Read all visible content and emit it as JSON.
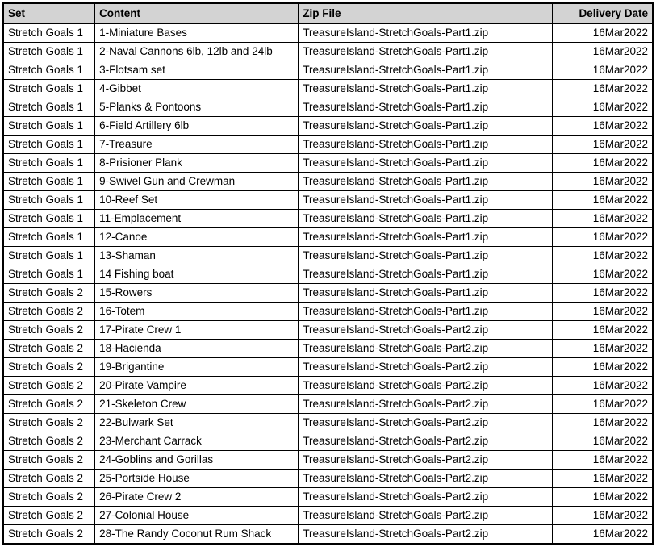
{
  "colors": {
    "header_bg": "#d3d3d3",
    "border": "#000000",
    "row_bg": "#ffffff",
    "text": "#000000"
  },
  "table": {
    "columns": [
      {
        "key": "set",
        "label": "Set"
      },
      {
        "key": "content",
        "label": "Content"
      },
      {
        "key": "zip",
        "label": "Zip File"
      },
      {
        "key": "date",
        "label": "Delivery Date"
      }
    ],
    "rows": [
      {
        "set": "Stretch Goals 1",
        "content": "1-Miniature Bases",
        "zip": "TreasureIsland-StretchGoals-Part1.zip",
        "date": "16Mar2022"
      },
      {
        "set": "Stretch Goals 1",
        "content": "2-Naval Cannons 6lb, 12lb and 24lb",
        "zip": "TreasureIsland-StretchGoals-Part1.zip",
        "date": "16Mar2022"
      },
      {
        "set": "Stretch Goals 1",
        "content": "3-Flotsam set",
        "zip": "TreasureIsland-StretchGoals-Part1.zip",
        "date": "16Mar2022"
      },
      {
        "set": "Stretch Goals 1",
        "content": "4-Gibbet",
        "zip": "TreasureIsland-StretchGoals-Part1.zip",
        "date": "16Mar2022"
      },
      {
        "set": "Stretch Goals 1",
        "content": "5-Planks & Pontoons",
        "zip": "TreasureIsland-StretchGoals-Part1.zip",
        "date": "16Mar2022"
      },
      {
        "set": "Stretch Goals 1",
        "content": "6-Field Artillery 6lb",
        "zip": "TreasureIsland-StretchGoals-Part1.zip",
        "date": "16Mar2022"
      },
      {
        "set": "Stretch Goals 1",
        "content": "7-Treasure",
        "zip": "TreasureIsland-StretchGoals-Part1.zip",
        "date": "16Mar2022"
      },
      {
        "set": "Stretch Goals 1",
        "content": "8-Prisioner Plank",
        "zip": "TreasureIsland-StretchGoals-Part1.zip",
        "date": "16Mar2022"
      },
      {
        "set": "Stretch Goals 1",
        "content": "9-Swivel Gun and Crewman",
        "zip": "TreasureIsland-StretchGoals-Part1.zip",
        "date": "16Mar2022"
      },
      {
        "set": "Stretch Goals 1",
        "content": "10-Reef Set",
        "zip": "TreasureIsland-StretchGoals-Part1.zip",
        "date": "16Mar2022"
      },
      {
        "set": "Stretch Goals 1",
        "content": "11-Emplacement",
        "zip": "TreasureIsland-StretchGoals-Part1.zip",
        "date": "16Mar2022"
      },
      {
        "set": "Stretch Goals 1",
        "content": "12-Canoe",
        "zip": "TreasureIsland-StretchGoals-Part1.zip",
        "date": "16Mar2022"
      },
      {
        "set": "Stretch Goals 1",
        "content": "13-Shaman",
        "zip": "TreasureIsland-StretchGoals-Part1.zip",
        "date": "16Mar2022"
      },
      {
        "set": "Stretch Goals 1",
        "content": "14 Fishing boat",
        "zip": "TreasureIsland-StretchGoals-Part1.zip",
        "date": "16Mar2022"
      },
      {
        "set": "Stretch Goals 2",
        "content": "15-Rowers",
        "zip": "TreasureIsland-StretchGoals-Part1.zip",
        "date": "16Mar2022"
      },
      {
        "set": "Stretch Goals 2",
        "content": "16-Totem",
        "zip": "TreasureIsland-StretchGoals-Part1.zip",
        "date": "16Mar2022"
      },
      {
        "set": "Stretch Goals 2",
        "content": "17-Pirate Crew 1",
        "zip": "TreasureIsland-StretchGoals-Part2.zip",
        "date": "16Mar2022"
      },
      {
        "set": "Stretch Goals 2",
        "content": "18-Hacienda",
        "zip": "TreasureIsland-StretchGoals-Part2.zip",
        "date": "16Mar2022"
      },
      {
        "set": "Stretch Goals 2",
        "content": "19-Brigantine",
        "zip": "TreasureIsland-StretchGoals-Part2.zip",
        "date": "16Mar2022"
      },
      {
        "set": "Stretch Goals 2",
        "content": "20-Pirate Vampire",
        "zip": "TreasureIsland-StretchGoals-Part2.zip",
        "date": "16Mar2022"
      },
      {
        "set": "Stretch Goals 2",
        "content": "21-Skeleton Crew",
        "zip": "TreasureIsland-StretchGoals-Part2.zip",
        "date": "16Mar2022"
      },
      {
        "set": "Stretch Goals 2",
        "content": "22-Bulwark Set",
        "zip": "TreasureIsland-StretchGoals-Part2.zip",
        "date": "16Mar2022"
      },
      {
        "set": "Stretch Goals 2",
        "content": "23-Merchant Carrack",
        "zip": "TreasureIsland-StretchGoals-Part2.zip",
        "date": "16Mar2022"
      },
      {
        "set": "Stretch Goals 2",
        "content": "24-Goblins and Gorillas",
        "zip": "TreasureIsland-StretchGoals-Part2.zip",
        "date": "16Mar2022"
      },
      {
        "set": "Stretch Goals 2",
        "content": "25-Portside House",
        "zip": "TreasureIsland-StretchGoals-Part2.zip",
        "date": "16Mar2022"
      },
      {
        "set": "Stretch Goals 2",
        "content": "26-Pirate Crew 2",
        "zip": "TreasureIsland-StretchGoals-Part2.zip",
        "date": "16Mar2022"
      },
      {
        "set": "Stretch Goals 2",
        "content": "27-Colonial House",
        "zip": "TreasureIsland-StretchGoals-Part2.zip",
        "date": "16Mar2022"
      },
      {
        "set": "Stretch Goals 2",
        "content": "28-The Randy Coconut Rum Shack",
        "zip": "TreasureIsland-StretchGoals-Part2.zip",
        "date": "16Mar2022"
      }
    ]
  }
}
